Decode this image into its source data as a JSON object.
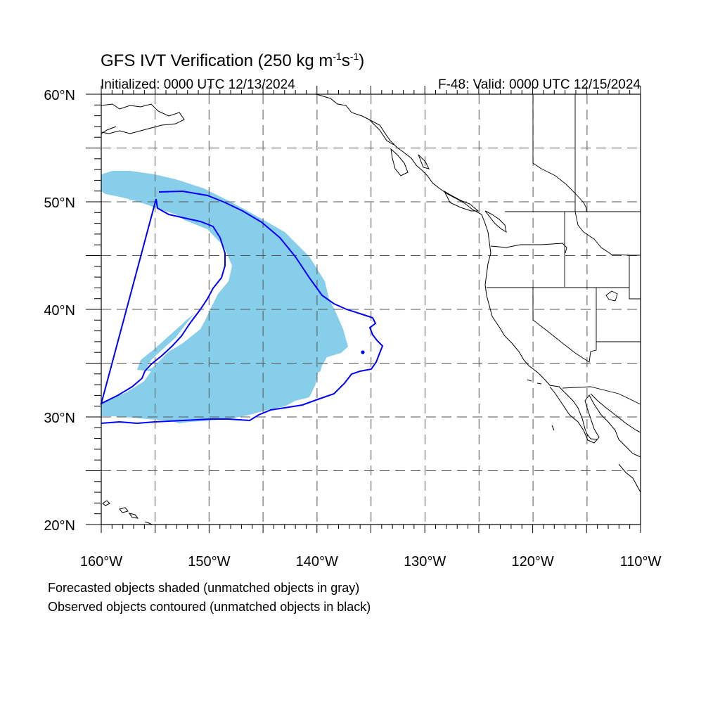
{
  "title": {
    "main": "GFS IVT Verification (250 kg m",
    "sup1": "-1",
    "mid": "s",
    "sup2": "-1",
    "end": ")"
  },
  "initialized": "Initialized: 0000 UTC 12/13/2024",
  "valid": "F-48: Valid: 0000 UTC 12/15/2024",
  "map": {
    "projection": "cylindrical-equidistant",
    "lon_range": [
      -160,
      -110
    ],
    "lat_range": [
      20,
      60
    ],
    "grid_dashed": true,
    "lon_labels": [
      {
        "lon": -160,
        "text": "160°W"
      },
      {
        "lon": -150,
        "text": "150°W"
      },
      {
        "lon": -140,
        "text": "140°W"
      },
      {
        "lon": -130,
        "text": "130°W"
      },
      {
        "lon": -120,
        "text": "120°W"
      },
      {
        "lon": -110,
        "text": "110°W"
      }
    ],
    "lat_labels": [
      {
        "lat": 60,
        "text": "60°N"
      },
      {
        "lat": 50,
        "text": "50°N"
      },
      {
        "lat": 40,
        "text": "40°N"
      },
      {
        "lat": 30,
        "text": "30°N"
      },
      {
        "lat": 20,
        "text": "20°N"
      }
    ],
    "forecast_fill_color": "#87ceeb",
    "observed_line_color": "#0000ff",
    "coast_color": "#000000"
  },
  "legend": {
    "line1": "Forecasted objects shaded (unmatched objects in gray)",
    "line2": "Observed objects contoured (unmatched objects in black)"
  }
}
